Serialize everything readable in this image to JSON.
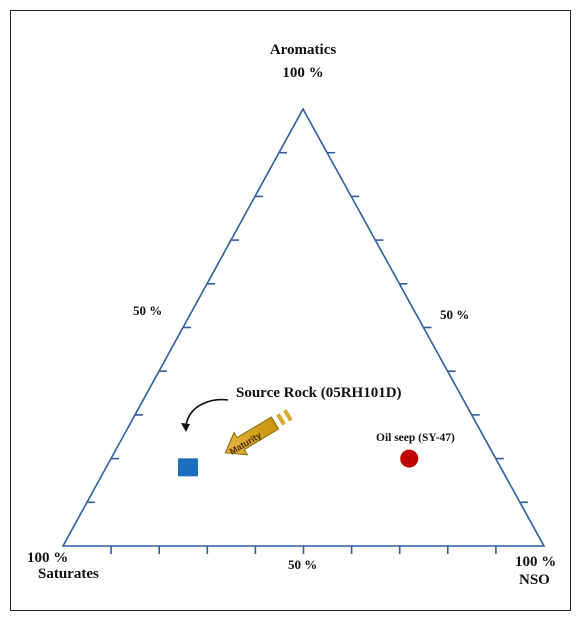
{
  "chart_data": {
    "type": "ternary",
    "vertices": {
      "top": {
        "name": "Aromatics",
        "value_label": "100 %"
      },
      "left": {
        "name": "Saturates",
        "value_label": "100 %"
      },
      "right": {
        "name": "NSO",
        "value_label": "100 %"
      }
    },
    "edge_midpoint_labels": {
      "left_edge": "50 %",
      "right_edge": "50 %",
      "bottom_edge": "50 %"
    },
    "tick_divisions": 10,
    "points": [
      {
        "name": "Source Rock (05RH101D)",
        "saturates": 65,
        "aromatics": 18,
        "nso": 17,
        "marker": "square",
        "color": "#1f6fc0"
      },
      {
        "name": "Oil seep (SY-47)",
        "saturates": 18,
        "aromatics": 20,
        "nso": 62,
        "marker": "circle",
        "color": "#c00000"
      }
    ],
    "annotation": {
      "text": "Maturity",
      "color": "#b8860b"
    },
    "colors": {
      "axis": "#2f5f9f"
    }
  }
}
